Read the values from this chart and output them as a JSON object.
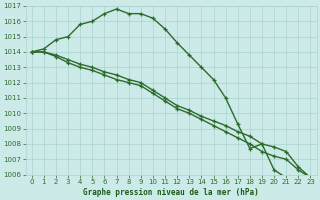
{
  "xlabel": "Graphe pression niveau de la mer (hPa)",
  "ylabel": "",
  "bg_color": "#cceae8",
  "grid_color": "#aad4d0",
  "line_color": "#2d6b2d",
  "x_values": [
    0,
    1,
    2,
    3,
    4,
    5,
    6,
    7,
    8,
    9,
    10,
    11,
    12,
    13,
    14,
    15,
    16,
    17,
    18,
    19,
    20,
    21,
    22,
    23
  ],
  "series": [
    [
      1014.0,
      1014.2,
      1014.8,
      1015.0,
      1015.8,
      1016.0,
      1016.5,
      1016.8,
      1016.5,
      1016.5,
      1016.2,
      1015.5,
      1014.6,
      1013.8,
      1013.0,
      1012.2,
      1011.0,
      1009.3,
      1007.7,
      1008.0,
      1006.3,
      1005.8,
      1005.8,
      1005.8
    ],
    [
      1014.0,
      1014.0,
      1013.8,
      1013.5,
      1013.2,
      1013.0,
      1012.7,
      1012.5,
      1012.2,
      1012.0,
      1011.5,
      1011.0,
      1010.5,
      1010.2,
      1009.8,
      1009.5,
      1009.2,
      1008.8,
      1008.5,
      1008.0,
      1007.8,
      1007.5,
      1006.5,
      1005.8
    ],
    [
      1014.0,
      1014.0,
      1013.7,
      1013.3,
      1013.0,
      1012.8,
      1012.5,
      1012.2,
      1012.0,
      1011.8,
      1011.3,
      1010.8,
      1010.3,
      1010.0,
      1009.6,
      1009.2,
      1008.8,
      1008.4,
      1008.0,
      1007.5,
      1007.2,
      1007.0,
      1006.3,
      1005.8
    ]
  ],
  "ylim": [
    1006,
    1017
  ],
  "ylim_bottom": 1006,
  "ylim_top": 1017,
  "yticks": [
    1006,
    1007,
    1008,
    1009,
    1010,
    1011,
    1012,
    1013,
    1014,
    1015,
    1016,
    1017
  ],
  "xticks": [
    0,
    1,
    2,
    3,
    4,
    5,
    6,
    7,
    8,
    9,
    10,
    11,
    12,
    13,
    14,
    15,
    16,
    17,
    18,
    19,
    20,
    21,
    22,
    23
  ],
  "xlabel_color": "#1a5c1a",
  "tick_color": "#2d6b2d",
  "marker": "+",
  "marker_size": 3.5,
  "line_width": 1.0
}
